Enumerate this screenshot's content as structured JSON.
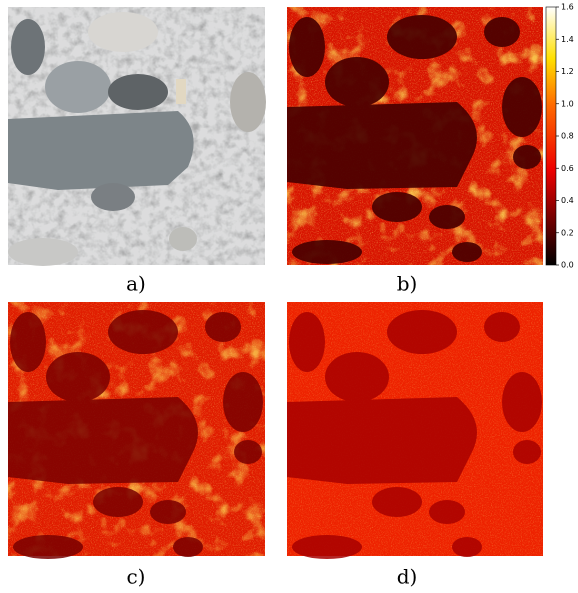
{
  "panels": [
    {
      "label": "a)"
    },
    {
      "label": "b)"
    },
    {
      "label": "c)"
    },
    {
      "label": "d)"
    }
  ],
  "colorbar": {
    "lim": [
      0,
      1.6
    ],
    "ticks": [
      {
        "value": 0,
        "label": "0.0"
      },
      {
        "value": 0.2,
        "label": "0.2"
      },
      {
        "value": 0.4,
        "label": "0.4"
      },
      {
        "value": 0.6,
        "label": "0.6"
      },
      {
        "value": 0.8,
        "label": "0.8"
      },
      {
        "value": 1,
        "label": "1.0"
      },
      {
        "value": 1.2,
        "label": "1.2"
      },
      {
        "value": 1.4,
        "label": "1.4"
      },
      {
        "value": 1.6,
        "label": "1.6"
      }
    ]
  }
}
